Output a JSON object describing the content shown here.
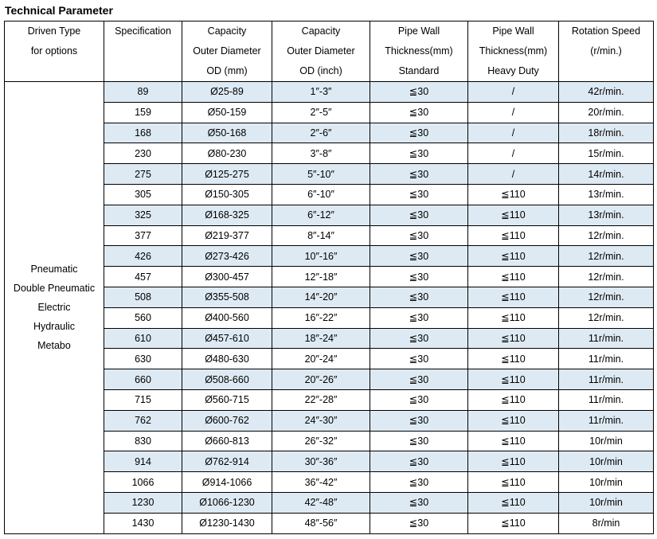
{
  "title": "Technical Parameter",
  "headers": [
    [
      "Driven Type",
      "for options"
    ],
    [
      "Specification"
    ],
    [
      "Capacity",
      "Outer Diameter",
      "OD (mm)"
    ],
    [
      "Capacity",
      "Outer Diameter",
      "OD (inch)"
    ],
    [
      "Pipe Wall",
      "Thickness(mm)",
      "Standard"
    ],
    [
      "Pipe Wall",
      "Thickness(mm)",
      "Heavy Duty"
    ],
    [
      "Rotation Speed",
      "(r/min.)"
    ]
  ],
  "driven_types": [
    "Pneumatic",
    "Double Pneumatic",
    "Electric",
    "Hydraulic",
    "Metabo"
  ],
  "rows": [
    [
      "89",
      "Ø25-89",
      "1″-3″",
      "≦30",
      "/",
      "42r/min."
    ],
    [
      "159",
      "Ø50-159",
      "2″-5″",
      "≦30",
      "/",
      "20r/min."
    ],
    [
      "168",
      "Ø50-168",
      "2″-6″",
      "≦30",
      "/",
      "18r/min."
    ],
    [
      "230",
      "Ø80-230",
      "3″-8″",
      "≦30",
      "/",
      "15r/min."
    ],
    [
      "275",
      "Ø125-275",
      "5″-10″",
      "≦30",
      "/",
      "14r/min."
    ],
    [
      "305",
      "Ø150-305",
      "6″-10″",
      "≦30",
      "≦110",
      "13r/min."
    ],
    [
      "325",
      "Ø168-325",
      "6″-12″",
      "≦30",
      "≦110",
      "13r/min."
    ],
    [
      "377",
      "Ø219-377",
      "8″-14″",
      "≦30",
      "≦110",
      "12r/min."
    ],
    [
      "426",
      "Ø273-426",
      "10″-16″",
      "≦30",
      "≦110",
      "12r/min."
    ],
    [
      "457",
      "Ø300-457",
      "12″-18″",
      "≦30",
      "≦110",
      "12r/min."
    ],
    [
      "508",
      "Ø355-508",
      "14″-20″",
      "≦30",
      "≦110",
      "12r/min."
    ],
    [
      "560",
      "Ø400-560",
      "16″-22″",
      "≦30",
      "≦110",
      "12r/min."
    ],
    [
      "610",
      "Ø457-610",
      "18″-24″",
      "≦30",
      "≦110",
      "11r/min."
    ],
    [
      "630",
      "Ø480-630",
      "20″-24″",
      "≦30",
      "≦110",
      "11r/min."
    ],
    [
      "660",
      "Ø508-660",
      "20″-26″",
      "≦30",
      "≦110",
      "11r/min."
    ],
    [
      "715",
      "Ø560-715",
      "22″-28″",
      "≦30",
      "≦110",
      "11r/min."
    ],
    [
      "762",
      "Ø600-762",
      "24″-30″",
      "≦30",
      "≦110",
      "11r/min."
    ],
    [
      "830",
      "Ø660-813",
      "26″-32″",
      "≦30",
      "≦110",
      "10r/min"
    ],
    [
      "914",
      "Ø762-914",
      "30″-36″",
      "≦30",
      "≦110",
      "10r/min"
    ],
    [
      "1066",
      "Ø914-1066",
      "36″-42″",
      "≦30",
      "≦110",
      "10r/min"
    ],
    [
      "1230",
      "Ø1066-1230",
      "42″-48″",
      "≦30",
      "≦110",
      "10r/min"
    ],
    [
      "1430",
      "Ø1230-1430",
      "48″-56″",
      "≦30",
      "≦110",
      "8r/min"
    ]
  ],
  "colors": {
    "shade": "#deeaf3",
    "border": "#000000"
  }
}
